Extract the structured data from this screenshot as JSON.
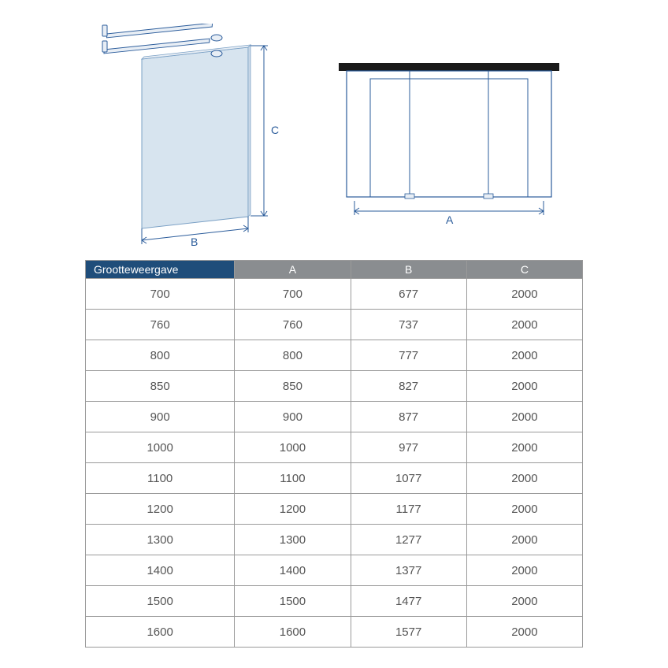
{
  "diagram": {
    "line_color": "#2b5c9b",
    "glass_fill": "#d7e4ef",
    "glass_stroke": "#7aa0c5",
    "bracket_fill": "#e8eef5",
    "topbar_color": "#1a1a1a",
    "label_color": "#2b5c9b",
    "label_B": "B",
    "label_C": "C",
    "label_A": "A"
  },
  "table": {
    "header_first_bg": "#1f4d7a",
    "header_rest_bg": "#8a8d90",
    "header_border": "#9a9a9a",
    "header_text": "#ffffff",
    "cell_border": "#9a9a9a",
    "cell_text": "#555555",
    "columns": [
      "Grootteweergave",
      "A",
      "B",
      "C"
    ],
    "rows": [
      [
        "700",
        "700",
        "677",
        "2000"
      ],
      [
        "760",
        "760",
        "737",
        "2000"
      ],
      [
        "800",
        "800",
        "777",
        "2000"
      ],
      [
        "850",
        "850",
        "827",
        "2000"
      ],
      [
        "900",
        "900",
        "877",
        "2000"
      ],
      [
        "1000",
        "1000",
        "977",
        "2000"
      ],
      [
        "1100",
        "1100",
        "1077",
        "2000"
      ],
      [
        "1200",
        "1200",
        "1177",
        "2000"
      ],
      [
        "1300",
        "1300",
        "1277",
        "2000"
      ],
      [
        "1400",
        "1400",
        "1377",
        "2000"
      ],
      [
        "1500",
        "1500",
        "1477",
        "2000"
      ],
      [
        "1600",
        "1600",
        "1577",
        "2000"
      ]
    ]
  }
}
